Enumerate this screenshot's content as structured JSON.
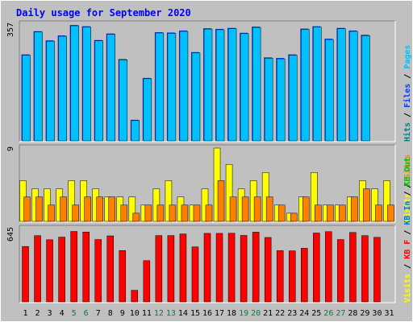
{
  "title": "Daily usage for September 2020",
  "colors": {
    "background": "#c0c0c0",
    "title": "#0000ff",
    "pages": "#00c0ff",
    "files": "#0040ff",
    "hits": "#008080",
    "visits": "#ffff00",
    "sites": "#ff8000",
    "kbf": "#ff0000",
    "kbin": "#0080c0",
    "kbout": "#00c000",
    "weekend_label": "#008040"
  },
  "chart_data": [
    {
      "type": "bar",
      "panel": "top",
      "max_label": "357",
      "ylim": [
        0,
        357
      ],
      "categories": [
        "1",
        "2",
        "3",
        "4",
        "5",
        "6",
        "7",
        "8",
        "9",
        "10",
        "11",
        "12",
        "13",
        "14",
        "15",
        "16",
        "17",
        "18",
        "19",
        "20",
        "21",
        "22",
        "23",
        "24",
        "25",
        "26",
        "27",
        "28",
        "29",
        "30",
        "31"
      ],
      "legend": [
        {
          "text": "Hits",
          "color": "#008080"
        },
        {
          "text": "Files",
          "color": "#0040ff"
        },
        {
          "text": "Pages",
          "color": "#00c0ff"
        }
      ],
      "series": [
        {
          "name": "Hits",
          "values": [
            262,
            333,
            305,
            320,
            352,
            348,
            306,
            326,
            248,
            62,
            190,
            330,
            329,
            335,
            269,
            342,
            340,
            343,
            328,
            347,
            253,
            251,
            262,
            341,
            348,
            310,
            343,
            335,
            322,
            0,
            0
          ]
        },
        {
          "name": "Files",
          "values": [
            262,
            333,
            305,
            320,
            352,
            348,
            306,
            326,
            248,
            62,
            190,
            330,
            329,
            335,
            269,
            342,
            340,
            343,
            328,
            347,
            253,
            251,
            262,
            341,
            348,
            310,
            343,
            335,
            322,
            0,
            0
          ]
        }
      ]
    },
    {
      "type": "bar",
      "panel": "middle",
      "max_label": "9",
      "ylim": [
        0,
        9
      ],
      "categories": [
        "1",
        "2",
        "3",
        "4",
        "5",
        "6",
        "7",
        "8",
        "9",
        "10",
        "11",
        "12",
        "13",
        "14",
        "15",
        "16",
        "17",
        "18",
        "19",
        "20",
        "21",
        "22",
        "23",
        "24",
        "25",
        "26",
        "27",
        "28",
        "29",
        "30",
        "31"
      ],
      "legend": [
        {
          "text": "Visits",
          "color": "#ffff00"
        },
        {
          "text": "Sites",
          "color": "#ff8000"
        }
      ],
      "series": [
        {
          "name": "Visits",
          "values": [
            5,
            4,
            4,
            4,
            5,
            5,
            4,
            3,
            3,
            3,
            2,
            4,
            5,
            3,
            2,
            4,
            9,
            7,
            4,
            5,
            6,
            2,
            1,
            3,
            6,
            2,
            2,
            3,
            5,
            4,
            5
          ]
        },
        {
          "name": "Sites",
          "values": [
            3,
            3,
            2,
            3,
            2,
            3,
            3,
            3,
            2,
            1,
            2,
            2,
            2,
            2,
            2,
            2,
            5,
            3,
            3,
            3,
            3,
            2,
            1,
            3,
            2,
            2,
            2,
            3,
            4,
            2,
            2
          ]
        }
      ]
    },
    {
      "type": "bar",
      "panel": "bottom",
      "max_label": "645",
      "ylim": [
        0,
        645
      ],
      "categories": [
        "1",
        "2",
        "3",
        "4",
        "5",
        "6",
        "7",
        "8",
        "9",
        "10",
        "11",
        "12",
        "13",
        "14",
        "15",
        "16",
        "17",
        "18",
        "19",
        "20",
        "21",
        "22",
        "23",
        "24",
        "25",
        "26",
        "27",
        "28",
        "29",
        "30",
        "31"
      ],
      "legend": [
        {
          "text": "Visits",
          "color": "#ffff00"
        },
        {
          "text": "KB F",
          "color": "#ff0000"
        },
        {
          "text": "KB In",
          "color": "#0080c0"
        },
        {
          "text": "KB Out",
          "color": "#00c000"
        }
      ],
      "series": [
        {
          "name": "KB F",
          "values": [
            488,
            583,
            547,
            570,
            620,
            615,
            549,
            581,
            452,
            102,
            363,
            584,
            584,
            598,
            484,
            603,
            603,
            604,
            585,
            614,
            567,
            451,
            449,
            472,
            606,
            618,
            549,
            611,
            583,
            568,
            0
          ]
        }
      ]
    }
  ],
  "x_labels": [
    {
      "text": "1",
      "weekend": false
    },
    {
      "text": "2",
      "weekend": false
    },
    {
      "text": "3",
      "weekend": false
    },
    {
      "text": "4",
      "weekend": false
    },
    {
      "text": "5",
      "weekend": true
    },
    {
      "text": "6",
      "weekend": true
    },
    {
      "text": "7",
      "weekend": false
    },
    {
      "text": "8",
      "weekend": false
    },
    {
      "text": "9",
      "weekend": false
    },
    {
      "text": "10",
      "weekend": false
    },
    {
      "text": "11",
      "weekend": false
    },
    {
      "text": "12",
      "weekend": true
    },
    {
      "text": "13",
      "weekend": true
    },
    {
      "text": "14",
      "weekend": false
    },
    {
      "text": "15",
      "weekend": false
    },
    {
      "text": "16",
      "weekend": false
    },
    {
      "text": "17",
      "weekend": false
    },
    {
      "text": "18",
      "weekend": false
    },
    {
      "text": "19",
      "weekend": true
    },
    {
      "text": "20",
      "weekend": true
    },
    {
      "text": "21",
      "weekend": false
    },
    {
      "text": "22",
      "weekend": false
    },
    {
      "text": "23",
      "weekend": false
    },
    {
      "text": "24",
      "weekend": false
    },
    {
      "text": "25",
      "weekend": false
    },
    {
      "text": "26",
      "weekend": true
    },
    {
      "text": "27",
      "weekend": true
    },
    {
      "text": "28",
      "weekend": false
    },
    {
      "text": "29",
      "weekend": false
    },
    {
      "text": "30",
      "weekend": false
    },
    {
      "text": "31",
      "weekend": false
    }
  ]
}
